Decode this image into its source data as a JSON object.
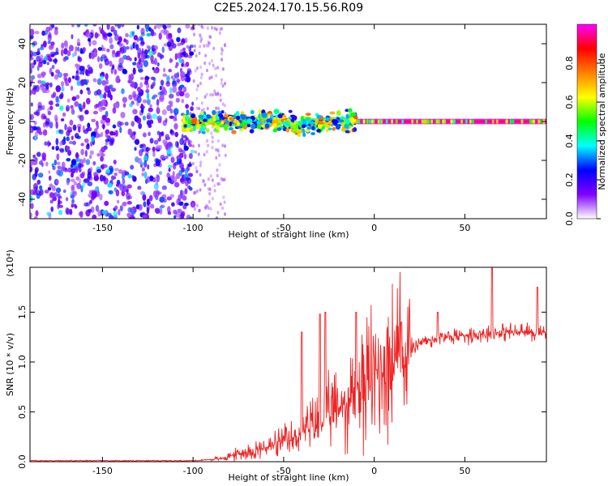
{
  "figure": {
    "title": "C2E5.2024.170.15.56.R09"
  },
  "chart_data": [
    {
      "type": "heatmap",
      "title": "C2E5.2024.170.15.56.R09",
      "xlabel": "Height of straight line (km)",
      "ylabel": "Frequency (Hz)",
      "xlim": [
        -190,
        95
      ],
      "ylim": [
        -50,
        50
      ],
      "xticks": [
        -150,
        -100,
        -50,
        0,
        50
      ],
      "yticks": [
        -40,
        -20,
        0,
        20,
        40
      ],
      "grid": false,
      "colorbar": {
        "label": "Normalized spectral amplitude",
        "range": [
          0.0,
          1.0
        ],
        "ticks": [
          "0.0",
          "0.2",
          "0.4",
          "0.6",
          "0.8"
        ],
        "colors": [
          "#ffffff",
          "#8000ff",
          "#0000ff",
          "#00ffff",
          "#00ff00",
          "#ffff00",
          "#ff8000",
          "#ff0000",
          "#ff00ff"
        ]
      },
      "regions": [
        {
          "name": "scattered noise",
          "x_range": [
            -190,
            -100
          ],
          "freq_range": [
            -50,
            50
          ],
          "amplitude": "0.1-0.4"
        },
        {
          "name": "faint noise",
          "x_range": [
            -100,
            -82
          ],
          "freq_range": [
            -50,
            50
          ],
          "amplitude": "0.05-0.15"
        },
        {
          "name": "broadened signal",
          "x_range": [
            -105,
            -10
          ],
          "freq_center": 0,
          "freq_halfwidth": 6,
          "amplitude": "0.3-0.8"
        },
        {
          "name": "narrow signal",
          "x_range": [
            -10,
            95
          ],
          "freq_center": 0,
          "freq_halfwidth": 1.5,
          "amplitude": "0.9-1.0"
        }
      ]
    },
    {
      "type": "line",
      "xlabel": "Height of straight line (km)",
      "ylabel": "SNR (10 * v/v)",
      "multiplier": "(x10⁴)",
      "xlim": [
        -190,
        95
      ],
      "ylim": [
        0,
        1.95
      ],
      "xticks": [
        -150,
        -100,
        -50,
        0,
        50
      ],
      "yticks": [
        "0.0",
        "0.5",
        "1.0",
        "1.5"
      ],
      "grid": false,
      "color": "#ee2222",
      "envelope": [
        {
          "x": -190,
          "y": 0.01
        },
        {
          "x": -100,
          "y": 0.01
        },
        {
          "x": -85,
          "y": 0.03
        },
        {
          "x": -75,
          "y": 0.08
        },
        {
          "x": -60,
          "y": 0.14
        },
        {
          "x": -45,
          "y": 0.22
        },
        {
          "x": -35,
          "y": 0.35
        },
        {
          "x": -25,
          "y": 0.45
        },
        {
          "x": -15,
          "y": 0.6
        },
        {
          "x": -5,
          "y": 0.8
        },
        {
          "x": 5,
          "y": 0.95
        },
        {
          "x": 15,
          "y": 1.05
        },
        {
          "x": 25,
          "y": 1.2
        },
        {
          "x": 40,
          "y": 1.25
        },
        {
          "x": 55,
          "y": 1.28
        },
        {
          "x": 70,
          "y": 1.3
        },
        {
          "x": 85,
          "y": 1.3
        },
        {
          "x": 95,
          "y": 1.3
        }
      ],
      "peaks": [
        {
          "x": -40,
          "y": 1.3
        },
        {
          "x": -30,
          "y": 1.48
        },
        {
          "x": -27,
          "y": 1.5
        },
        {
          "x": -10,
          "y": 1.5
        },
        {
          "x": 15,
          "y": 1.4
        },
        {
          "x": 35,
          "y": 1.5
        },
        {
          "x": 65,
          "y": 1.95
        },
        {
          "x": 90,
          "y": 1.75
        }
      ]
    }
  ]
}
